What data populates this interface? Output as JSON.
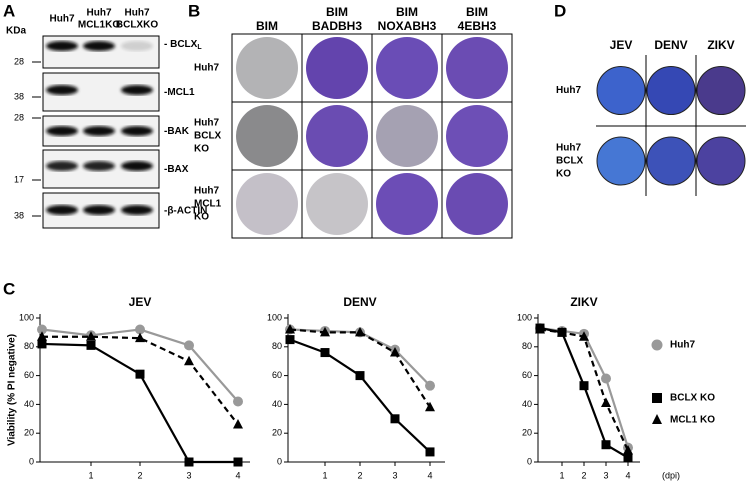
{
  "panel_a": {
    "letter": "A",
    "unit": "KDa",
    "columns": [
      [
        "Huh7"
      ],
      [
        "Huh7",
        "MCL1KO"
      ],
      [
        "Huh7",
        "BCLXKO"
      ]
    ],
    "rows": [
      {
        "label": "- BCLX",
        "subscript": "L",
        "kda": "28"
      },
      {
        "label": "-MCL1",
        "kda": "38"
      },
      {
        "label": "-BAK",
        "kda": "28"
      },
      {
        "label": "-BAX",
        "kda": "17"
      },
      {
        "label": "-β-ACTIN",
        "kda": "38"
      }
    ]
  },
  "panel_b": {
    "letter": "B",
    "columns": [
      [
        "BIM"
      ],
      [
        "BIM",
        "BADBH3"
      ],
      [
        "BIM",
        "NOXABH3"
      ],
      [
        "BIM",
        "4EBH3"
      ]
    ],
    "rows": [
      [
        "Huh7"
      ],
      [
        "Huh7",
        "BCLX",
        "KO"
      ],
      [
        "Huh7",
        "MCL1",
        "KO"
      ]
    ]
  },
  "panel_c": {
    "letter": "C"
  },
  "panel_d": {
    "letter": "D",
    "columns": [
      "JEV",
      "DENV",
      "ZIKV"
    ],
    "rows": [
      [
        "Huh7"
      ],
      [
        "Huh7",
        "BCLX",
        "KO"
      ]
    ]
  },
  "chart_data": [
    {
      "type": "line",
      "title": "JEV",
      "y_label": "Viability (% PI negative)",
      "x": [
        0,
        1,
        2,
        3,
        4
      ],
      "xlim": [
        0,
        4
      ],
      "xticks": [
        1,
        2,
        3,
        4
      ],
      "ylim": [
        0,
        100
      ],
      "yticks": [
        0,
        20,
        40,
        60,
        80,
        100
      ],
      "series": [
        {
          "name": "Huh7",
          "color": "#999999",
          "marker": "circle",
          "dashed": false,
          "values": [
            92,
            88,
            92,
            81,
            42
          ]
        },
        {
          "name": "BCLX KO",
          "color": "#000000",
          "marker": "square",
          "dashed": false,
          "values": [
            82,
            81,
            61,
            0,
            0
          ]
        },
        {
          "name": "MCL1 KO",
          "color": "#000000",
          "marker": "triangle",
          "dashed": true,
          "values": [
            87,
            87,
            86,
            70,
            26
          ]
        }
      ]
    },
    {
      "type": "line",
      "title": "DENV",
      "x": [
        0,
        1,
        2,
        3,
        4
      ],
      "xlim": [
        0,
        4
      ],
      "xticks": [
        1,
        2,
        3,
        4
      ],
      "ylim": [
        0,
        100
      ],
      "yticks": [
        0,
        20,
        40,
        60,
        80,
        100
      ],
      "series": [
        {
          "name": "Huh7",
          "color": "#999999",
          "marker": "circle",
          "dashed": false,
          "values": [
            92,
            91,
            90,
            78,
            53
          ]
        },
        {
          "name": "BCLX KO",
          "color": "#000000",
          "marker": "square",
          "dashed": false,
          "values": [
            85,
            76,
            60,
            30,
            7
          ]
        },
        {
          "name": "MCL1 KO",
          "color": "#000000",
          "marker": "triangle",
          "dashed": true,
          "values": [
            92,
            90,
            90,
            76,
            38
          ]
        }
      ]
    },
    {
      "type": "line",
      "title": "ZIKV",
      "x_label": "(dpi)",
      "legend": "right",
      "x": [
        0,
        1,
        2,
        3,
        4
      ],
      "xlim": [
        0,
        4
      ],
      "xticks": [
        1,
        2,
        3,
        4
      ],
      "ylim": [
        0,
        100
      ],
      "yticks": [
        0,
        20,
        40,
        60,
        80,
        100
      ],
      "series": [
        {
          "name": "Huh7",
          "color": "#999999",
          "marker": "circle",
          "dashed": false,
          "values": [
            93,
            91,
            89,
            58,
            10
          ]
        },
        {
          "name": "BCLX KO",
          "color": "#000000",
          "marker": "square",
          "dashed": false,
          "values": [
            93,
            90,
            53,
            12,
            3
          ]
        },
        {
          "name": "MCL1 KO",
          "color": "#000000",
          "marker": "triangle",
          "dashed": true,
          "values": [
            92,
            90,
            87,
            41,
            8
          ]
        }
      ]
    }
  ]
}
